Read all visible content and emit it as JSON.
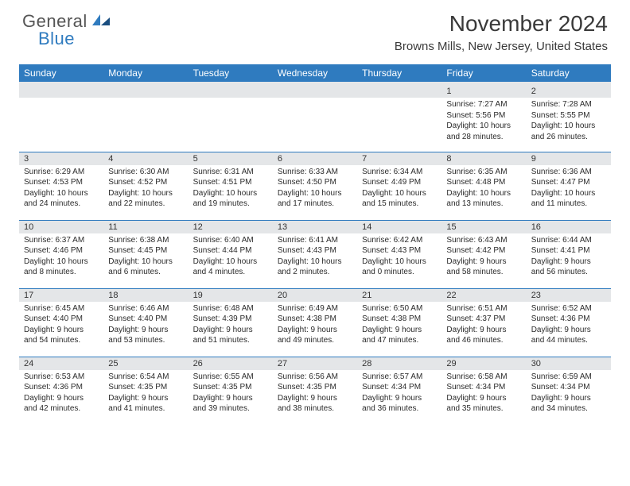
{
  "logo": {
    "gen": "General",
    "blue": "Blue"
  },
  "title": "November 2024",
  "location": "Browns Mills, New Jersey, United States",
  "colors": {
    "header_bg": "#2f7bbf",
    "header_text": "#ffffff",
    "daynum_bg": "#e4e6e8",
    "border": "#2f7bbf",
    "text": "#2b2b2b"
  },
  "weekdays": [
    "Sunday",
    "Monday",
    "Tuesday",
    "Wednesday",
    "Thursday",
    "Friday",
    "Saturday"
  ],
  "weeks": [
    [
      {
        "n": "",
        "sr": "",
        "ss": "",
        "dl": ""
      },
      {
        "n": "",
        "sr": "",
        "ss": "",
        "dl": ""
      },
      {
        "n": "",
        "sr": "",
        "ss": "",
        "dl": ""
      },
      {
        "n": "",
        "sr": "",
        "ss": "",
        "dl": ""
      },
      {
        "n": "",
        "sr": "",
        "ss": "",
        "dl": ""
      },
      {
        "n": "1",
        "sr": "Sunrise: 7:27 AM",
        "ss": "Sunset: 5:56 PM",
        "dl": "Daylight: 10 hours and 28 minutes."
      },
      {
        "n": "2",
        "sr": "Sunrise: 7:28 AM",
        "ss": "Sunset: 5:55 PM",
        "dl": "Daylight: 10 hours and 26 minutes."
      }
    ],
    [
      {
        "n": "3",
        "sr": "Sunrise: 6:29 AM",
        "ss": "Sunset: 4:53 PM",
        "dl": "Daylight: 10 hours and 24 minutes."
      },
      {
        "n": "4",
        "sr": "Sunrise: 6:30 AM",
        "ss": "Sunset: 4:52 PM",
        "dl": "Daylight: 10 hours and 22 minutes."
      },
      {
        "n": "5",
        "sr": "Sunrise: 6:31 AM",
        "ss": "Sunset: 4:51 PM",
        "dl": "Daylight: 10 hours and 19 minutes."
      },
      {
        "n": "6",
        "sr": "Sunrise: 6:33 AM",
        "ss": "Sunset: 4:50 PM",
        "dl": "Daylight: 10 hours and 17 minutes."
      },
      {
        "n": "7",
        "sr": "Sunrise: 6:34 AM",
        "ss": "Sunset: 4:49 PM",
        "dl": "Daylight: 10 hours and 15 minutes."
      },
      {
        "n": "8",
        "sr": "Sunrise: 6:35 AM",
        "ss": "Sunset: 4:48 PM",
        "dl": "Daylight: 10 hours and 13 minutes."
      },
      {
        "n": "9",
        "sr": "Sunrise: 6:36 AM",
        "ss": "Sunset: 4:47 PM",
        "dl": "Daylight: 10 hours and 11 minutes."
      }
    ],
    [
      {
        "n": "10",
        "sr": "Sunrise: 6:37 AM",
        "ss": "Sunset: 4:46 PM",
        "dl": "Daylight: 10 hours and 8 minutes."
      },
      {
        "n": "11",
        "sr": "Sunrise: 6:38 AM",
        "ss": "Sunset: 4:45 PM",
        "dl": "Daylight: 10 hours and 6 minutes."
      },
      {
        "n": "12",
        "sr": "Sunrise: 6:40 AM",
        "ss": "Sunset: 4:44 PM",
        "dl": "Daylight: 10 hours and 4 minutes."
      },
      {
        "n": "13",
        "sr": "Sunrise: 6:41 AM",
        "ss": "Sunset: 4:43 PM",
        "dl": "Daylight: 10 hours and 2 minutes."
      },
      {
        "n": "14",
        "sr": "Sunrise: 6:42 AM",
        "ss": "Sunset: 4:43 PM",
        "dl": "Daylight: 10 hours and 0 minutes."
      },
      {
        "n": "15",
        "sr": "Sunrise: 6:43 AM",
        "ss": "Sunset: 4:42 PM",
        "dl": "Daylight: 9 hours and 58 minutes."
      },
      {
        "n": "16",
        "sr": "Sunrise: 6:44 AM",
        "ss": "Sunset: 4:41 PM",
        "dl": "Daylight: 9 hours and 56 minutes."
      }
    ],
    [
      {
        "n": "17",
        "sr": "Sunrise: 6:45 AM",
        "ss": "Sunset: 4:40 PM",
        "dl": "Daylight: 9 hours and 54 minutes."
      },
      {
        "n": "18",
        "sr": "Sunrise: 6:46 AM",
        "ss": "Sunset: 4:40 PM",
        "dl": "Daylight: 9 hours and 53 minutes."
      },
      {
        "n": "19",
        "sr": "Sunrise: 6:48 AM",
        "ss": "Sunset: 4:39 PM",
        "dl": "Daylight: 9 hours and 51 minutes."
      },
      {
        "n": "20",
        "sr": "Sunrise: 6:49 AM",
        "ss": "Sunset: 4:38 PM",
        "dl": "Daylight: 9 hours and 49 minutes."
      },
      {
        "n": "21",
        "sr": "Sunrise: 6:50 AM",
        "ss": "Sunset: 4:38 PM",
        "dl": "Daylight: 9 hours and 47 minutes."
      },
      {
        "n": "22",
        "sr": "Sunrise: 6:51 AM",
        "ss": "Sunset: 4:37 PM",
        "dl": "Daylight: 9 hours and 46 minutes."
      },
      {
        "n": "23",
        "sr": "Sunrise: 6:52 AM",
        "ss": "Sunset: 4:36 PM",
        "dl": "Daylight: 9 hours and 44 minutes."
      }
    ],
    [
      {
        "n": "24",
        "sr": "Sunrise: 6:53 AM",
        "ss": "Sunset: 4:36 PM",
        "dl": "Daylight: 9 hours and 42 minutes."
      },
      {
        "n": "25",
        "sr": "Sunrise: 6:54 AM",
        "ss": "Sunset: 4:35 PM",
        "dl": "Daylight: 9 hours and 41 minutes."
      },
      {
        "n": "26",
        "sr": "Sunrise: 6:55 AM",
        "ss": "Sunset: 4:35 PM",
        "dl": "Daylight: 9 hours and 39 minutes."
      },
      {
        "n": "27",
        "sr": "Sunrise: 6:56 AM",
        "ss": "Sunset: 4:35 PM",
        "dl": "Daylight: 9 hours and 38 minutes."
      },
      {
        "n": "28",
        "sr": "Sunrise: 6:57 AM",
        "ss": "Sunset: 4:34 PM",
        "dl": "Daylight: 9 hours and 36 minutes."
      },
      {
        "n": "29",
        "sr": "Sunrise: 6:58 AM",
        "ss": "Sunset: 4:34 PM",
        "dl": "Daylight: 9 hours and 35 minutes."
      },
      {
        "n": "30",
        "sr": "Sunrise: 6:59 AM",
        "ss": "Sunset: 4:34 PM",
        "dl": "Daylight: 9 hours and 34 minutes."
      }
    ]
  ]
}
